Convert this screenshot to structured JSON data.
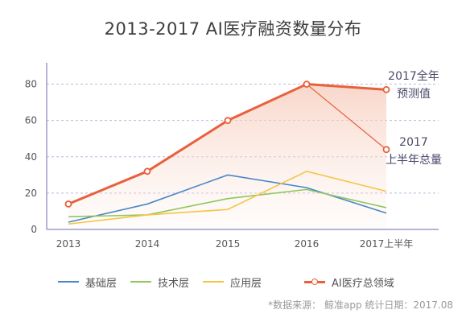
{
  "chart_data": {
    "type": "line",
    "title": "2013-2017  AI医疗融资数量分布",
    "categories": [
      "2013",
      "2014",
      "2015",
      "2016",
      "2017上半年"
    ],
    "ylim": [
      0,
      90
    ],
    "yticks": [
      0,
      20,
      40,
      60,
      80
    ],
    "grid": "horizontal dashed",
    "series": [
      {
        "name": "基础层",
        "values": [
          4,
          14,
          30,
          23,
          9
        ],
        "color": "#4a86c8"
      },
      {
        "name": "技术层",
        "values": [
          7,
          8,
          17,
          22,
          12
        ],
        "color": "#8fc75d"
      },
      {
        "name": "应用层",
        "values": [
          3,
          8,
          11,
          32,
          21
        ],
        "color": "#f6c443"
      },
      {
        "name": "AI医疗总领域",
        "values": [
          14,
          32,
          60,
          80,
          44
        ],
        "forecast_2017": 77,
        "color": "#e8603c"
      }
    ],
    "annotations": [
      {
        "line1": "2017全年",
        "line2": "预测值"
      },
      {
        "line1": "2017",
        "line2": "上半年总量"
      }
    ],
    "legend_placement": "bottom"
  },
  "footnote": "*数据来源： 鲸准app  统计日期：2017.08"
}
